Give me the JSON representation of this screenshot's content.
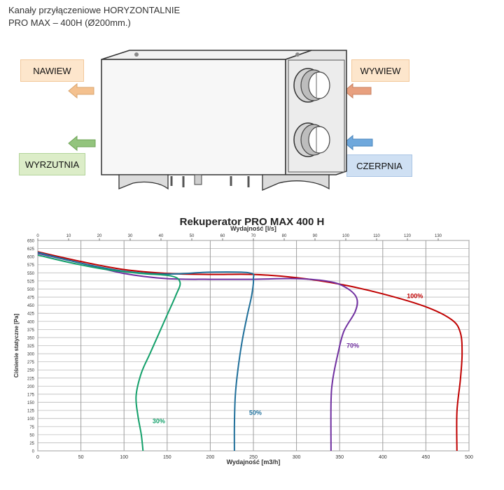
{
  "header": {
    "line1": "Kanały przyłączeniowe HORYZONTALNIE",
    "line2": "PRO MAX – 400H (Ø200mm.)"
  },
  "labels": {
    "nawiew": "NAWIEW",
    "wyrzutnia": "WYRZUTNIA",
    "wywiew": "WYWIEW",
    "czerpnia": "CZERPNIA"
  },
  "colors": {
    "orange_arrow": "#f4c18f",
    "green_arrow": "#93c47d",
    "salmon_arrow": "#e8a07f",
    "blue_arrow": "#6fa8dc"
  },
  "chart_data": {
    "type": "line",
    "title": "Rekuperator PRO MAX 400 H",
    "xlabel": "Wydajność [m3/h]",
    "x2label": "Wydajność [l/s]",
    "ylabel": "Ciśnienie statyczne [Pa]",
    "xlim": [
      0,
      500
    ],
    "x2lim": [
      0,
      140
    ],
    "ylim": [
      0,
      650
    ],
    "xticks": [
      "0",
      "50",
      "100",
      "150",
      "200",
      "250",
      "300",
      "350",
      "400",
      "450",
      "500"
    ],
    "x2ticks": [
      "0",
      "10",
      "20",
      "30",
      "40",
      "50",
      "60",
      "70",
      "80",
      "90",
      "100",
      "110",
      "120",
      "130"
    ],
    "yticks": [
      "0",
      "25",
      "50",
      "75",
      "100",
      "125",
      "150",
      "175",
      "200",
      "225",
      "250",
      "275",
      "300",
      "325",
      "350",
      "375",
      "400",
      "425",
      "450",
      "475",
      "500",
      "525",
      "550",
      "575",
      "600",
      "625",
      "650"
    ],
    "grid": true,
    "series": [
      {
        "name": "100%",
        "color": "#c00000",
        "points": [
          [
            0,
            615
          ],
          [
            50,
            585
          ],
          [
            100,
            560
          ],
          [
            150,
            548
          ],
          [
            200,
            545
          ],
          [
            250,
            545
          ],
          [
            300,
            535
          ],
          [
            350,
            515
          ],
          [
            400,
            485
          ],
          [
            450,
            445
          ],
          [
            480,
            405
          ],
          [
            490,
            365
          ],
          [
            492,
            300
          ],
          [
            490,
            220
          ],
          [
            486,
            120
          ],
          [
            486,
            0
          ]
        ]
      },
      {
        "name": "70%",
        "color": "#7030a0",
        "points": [
          [
            0,
            610
          ],
          [
            50,
            580
          ],
          [
            100,
            548
          ],
          [
            150,
            532
          ],
          [
            200,
            530
          ],
          [
            250,
            530
          ],
          [
            300,
            532
          ],
          [
            340,
            522
          ],
          [
            360,
            500
          ],
          [
            370,
            470
          ],
          [
            368,
            430
          ],
          [
            355,
            370
          ],
          [
            348,
            300
          ],
          [
            342,
            220
          ],
          [
            340,
            150
          ],
          [
            340,
            0
          ]
        ]
      },
      {
        "name": "50%",
        "color": "#1f6f9a",
        "points": [
          [
            0,
            613
          ],
          [
            50,
            580
          ],
          [
            100,
            555
          ],
          [
            150,
            546
          ],
          [
            200,
            552
          ],
          [
            245,
            550
          ],
          [
            250,
            530
          ],
          [
            248,
            480
          ],
          [
            243,
            420
          ],
          [
            237,
            340
          ],
          [
            232,
            250
          ],
          [
            229,
            170
          ],
          [
            228,
            80
          ],
          [
            228,
            0
          ]
        ]
      },
      {
        "name": "30%",
        "color": "#13a06a",
        "points": [
          [
            0,
            605
          ],
          [
            40,
            580
          ],
          [
            80,
            560
          ],
          [
            120,
            548
          ],
          [
            155,
            540
          ],
          [
            165,
            520
          ],
          [
            160,
            480
          ],
          [
            150,
            420
          ],
          [
            140,
            360
          ],
          [
            130,
            300
          ],
          [
            120,
            240
          ],
          [
            114,
            170
          ],
          [
            116,
            110
          ],
          [
            120,
            50
          ],
          [
            122,
            0
          ]
        ]
      }
    ]
  }
}
